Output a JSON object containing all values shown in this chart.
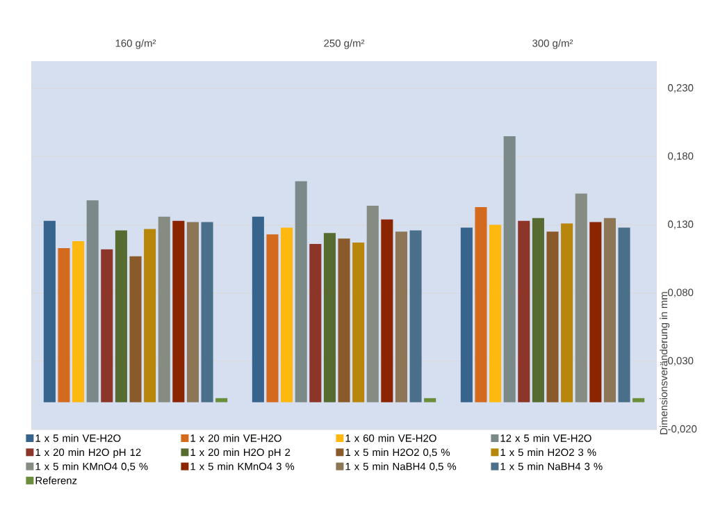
{
  "chart_data": {
    "type": "bar",
    "ylabel": "Dimensionsveränderung in mm",
    "categories": [
      "160 g/m²",
      "250 g/m²",
      "300 g/m²"
    ],
    "series": [
      {
        "name": "1 x 5 min VE-H2O",
        "color": "#37648c",
        "values": [
          0.133,
          0.136,
          0.128
        ]
      },
      {
        "name": "1 x 20 min VE-H2O",
        "color": "#d46a1e",
        "values": [
          0.113,
          0.123,
          0.143
        ]
      },
      {
        "name": "1 x 60 min VE-H2O",
        "color": "#ffb810",
        "values": [
          0.118,
          0.128,
          0.13
        ]
      },
      {
        "name": "12 x 5 min VE-H2O",
        "color": "#7b8a88",
        "values": [
          0.148,
          0.162,
          0.195
        ]
      },
      {
        "name": "1 x 20 min H2O pH 12",
        "color": "#8c3528",
        "values": [
          0.112,
          0.116,
          0.133
        ]
      },
      {
        "name": "1 x 20 min H2O pH 2",
        "color": "#576b30",
        "values": [
          0.126,
          0.124,
          0.135
        ]
      },
      {
        "name": "1 x 5 min H2O2 0,5 %",
        "color": "#8a5a2b",
        "values": [
          0.107,
          0.12,
          0.125
        ]
      },
      {
        "name": "1 x 5 min H2O2 3 %",
        "color": "#b8860b",
        "values": [
          0.127,
          0.117,
          0.131
        ]
      },
      {
        "name": "1 x 5 min KMnO4 0,5 %",
        "color": "#868c82",
        "values": [
          0.136,
          0.144,
          0.153
        ]
      },
      {
        "name": "1 x 5 min KMnO4 3 %",
        "color": "#8b2500",
        "values": [
          0.133,
          0.134,
          0.132
        ]
      },
      {
        "name": "1 x 5 min NaBH4 0,5 %",
        "color": "#8c7655",
        "values": [
          0.132,
          0.125,
          0.135
        ]
      },
      {
        "name": "1 x 5 min NaBH4 3 %",
        "color": "#4a6f8a",
        "values": [
          0.132,
          0.126,
          0.128
        ]
      },
      {
        "name": "Referenz",
        "color": "#6b8e3a",
        "values": [
          0.003,
          0.003,
          0.003
        ]
      }
    ],
    "ylim": [
      -0.02,
      0.25
    ],
    "yticks": [
      {
        "value": -0.02,
        "label": "-0,020"
      },
      {
        "value": 0.03,
        "label": "0,030"
      },
      {
        "value": 0.08,
        "label": "0,080"
      },
      {
        "value": 0.13,
        "label": "0,130"
      },
      {
        "value": 0.18,
        "label": "0,180"
      },
      {
        "value": 0.23,
        "label": "0,230"
      }
    ],
    "grid": "y",
    "legend": "bottom"
  }
}
